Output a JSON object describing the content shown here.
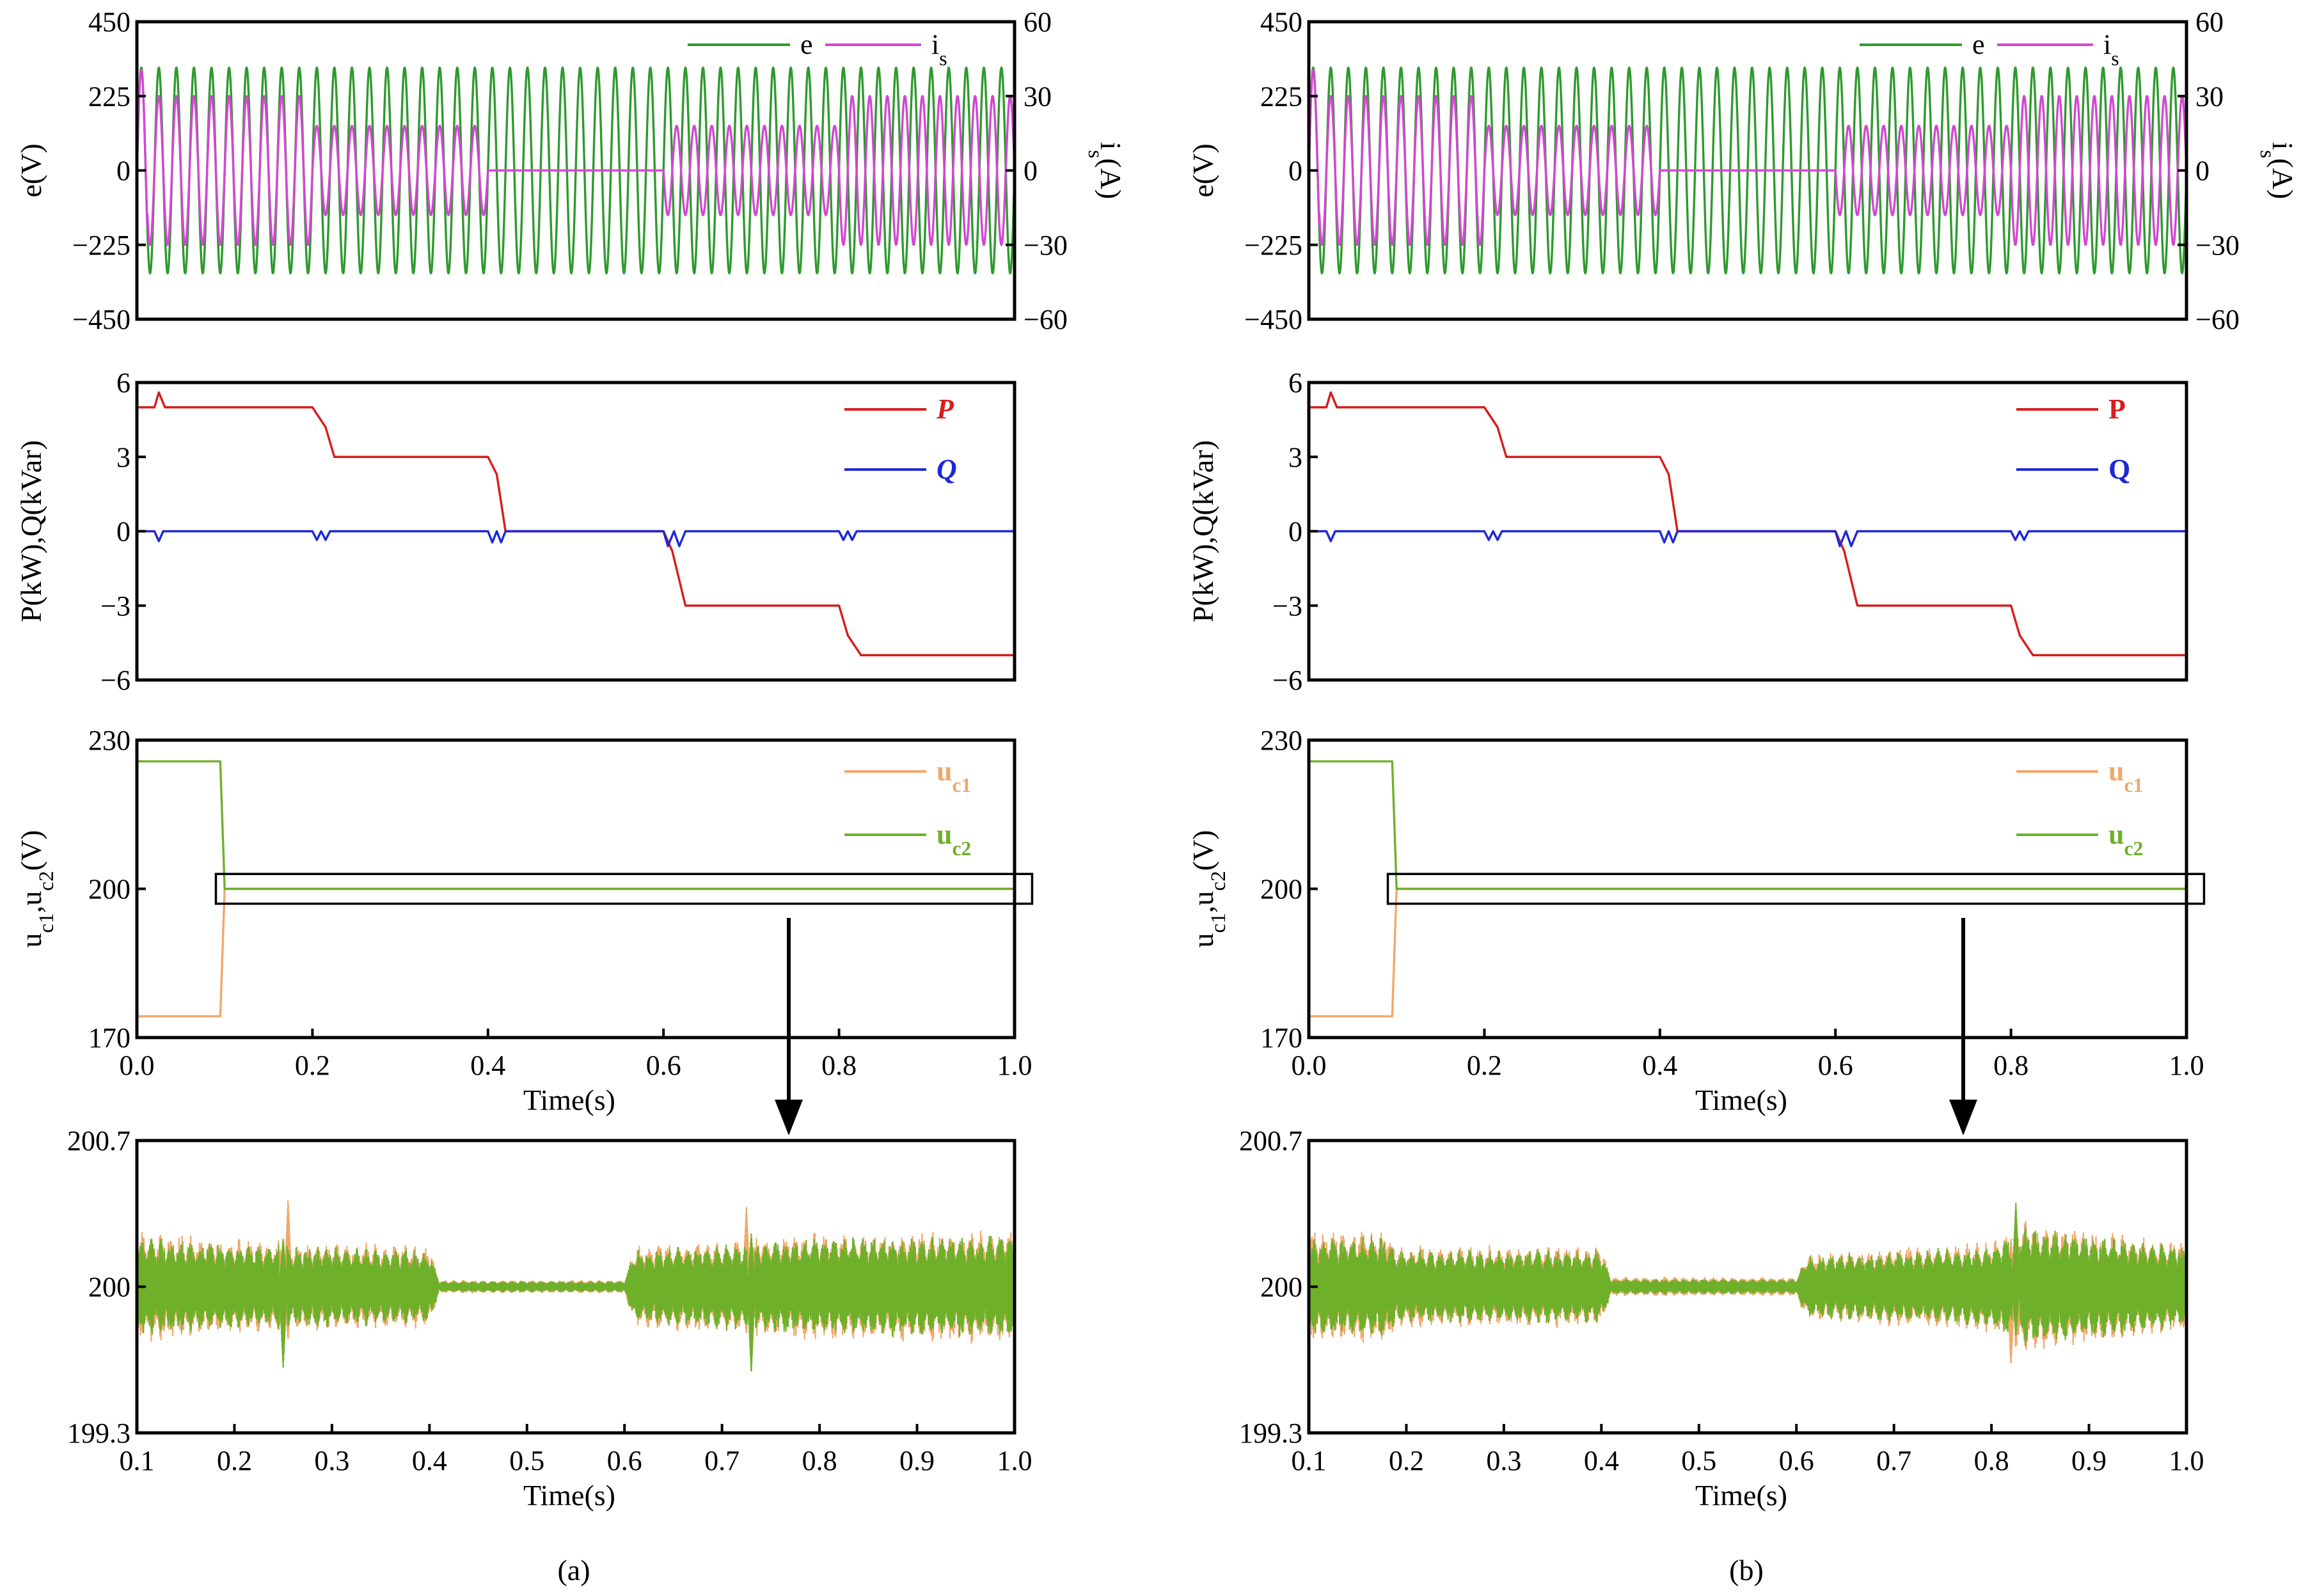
{
  "figure_labels": {
    "a": "(a)",
    "b": "(b)"
  },
  "colors": {
    "e": "#2e9a2e",
    "is": "#d247d2",
    "P": "#d81c1c",
    "Q": "#1c28d8",
    "uc1": "#f0a86a",
    "uc2": "#6fb02a",
    "axis": "#000000"
  },
  "chart_data": [
    {
      "id": "a1",
      "type": "line",
      "ylabel_left": "e(V)",
      "ylabel_right": "i<sub>s</sub>(A)",
      "ylim_left": [
        -450,
        450
      ],
      "ylim_right": [
        -60,
        60
      ],
      "yticks_left": [
        "450",
        "225",
        "0",
        "−225",
        "−450"
      ],
      "yticks_right": [
        "60",
        "30",
        "0",
        "−30",
        "−60"
      ],
      "xlim": [
        0,
        1
      ],
      "legend": [
        {
          "name": "e"
        },
        {
          "name": "i",
          "sub": "s"
        }
      ],
      "series": [
        {
          "name": "e",
          "kind": "sine",
          "freq": 50,
          "amp": 311
        },
        {
          "name": "is",
          "kind": "sine_steps",
          "freq": 50,
          "amp_scale": 60,
          "phase_shift": 180,
          "segments": [
            [
              0,
              0.2,
              30,
              1
            ],
            [
              0.2,
              0.4,
              18,
              1
            ],
            [
              0.4,
              0.6,
              0,
              1
            ],
            [
              0.6,
              0.8,
              18,
              -1
            ],
            [
              0.8,
              1.0,
              30,
              -1
            ]
          ]
        }
      ]
    },
    {
      "id": "a2",
      "type": "line",
      "ylabel_left": "P(kW),Q(kVar)",
      "ylim_left": [
        -6,
        6
      ],
      "yticks_left": [
        "6",
        "3",
        "0",
        "−3",
        "−6"
      ],
      "xlim": [
        0,
        1
      ],
      "legend": [
        {
          "name": "P",
          "italic": true
        },
        {
          "name": "Q",
          "italic": true
        }
      ],
      "series": [
        {
          "name": "P",
          "points": [
            [
              0,
              5
            ],
            [
              0.02,
              5
            ],
            [
              0.025,
              5.6
            ],
            [
              0.032,
              5
            ],
            [
              0.2,
              5
            ],
            [
              0.215,
              4.2
            ],
            [
              0.225,
              3
            ],
            [
              0.4,
              3
            ],
            [
              0.41,
              2.3
            ],
            [
              0.42,
              0
            ],
            [
              0.6,
              0
            ],
            [
              0.61,
              -0.8
            ],
            [
              0.625,
              -3
            ],
            [
              0.8,
              -3
            ],
            [
              0.81,
              -4.2
            ],
            [
              0.825,
              -5
            ],
            [
              1.0,
              -5
            ]
          ]
        },
        {
          "name": "Q",
          "points": [
            [
              0,
              0
            ],
            [
              0.02,
              0
            ],
            [
              0.025,
              -0.4
            ],
            [
              0.03,
              0
            ],
            [
              0.2,
              0
            ],
            [
              0.205,
              -0.35
            ],
            [
              0.21,
              0
            ],
            [
              0.215,
              -0.35
            ],
            [
              0.22,
              0
            ],
            [
              0.4,
              0
            ],
            [
              0.405,
              -0.45
            ],
            [
              0.41,
              0
            ],
            [
              0.415,
              -0.45
            ],
            [
              0.42,
              0
            ],
            [
              0.6,
              0
            ],
            [
              0.605,
              -0.6
            ],
            [
              0.612,
              0
            ],
            [
              0.618,
              -0.6
            ],
            [
              0.625,
              0
            ],
            [
              0.8,
              0
            ],
            [
              0.805,
              -0.35
            ],
            [
              0.81,
              0
            ],
            [
              0.815,
              -0.35
            ],
            [
              0.82,
              0
            ],
            [
              1.0,
              0
            ]
          ]
        }
      ]
    },
    {
      "id": "a3",
      "type": "line",
      "ylabel_left": "u<sub>c1</sub>,u<sub>c2</sub>(V)",
      "ylim_left": [
        165,
        235
      ],
      "yticks_left": [
        "230",
        "200",
        "170"
      ],
      "xlim": [
        0,
        1
      ],
      "xticks": [
        "0.0",
        "0.2",
        "0.4",
        "0.6",
        "0.8",
        "1.0"
      ],
      "xlabel": "Time(s)",
      "legend": [
        {
          "name": "u",
          "sub": "c1",
          "bold": true,
          "colorkey": "uc1"
        },
        {
          "name": "u",
          "sub": "c2",
          "bold": true,
          "colorkey": "uc2"
        }
      ],
      "series": [
        {
          "name": "uc1",
          "points": [
            [
              0,
              170
            ],
            [
              0.095,
              170
            ],
            [
              0.1,
              200
            ],
            [
              1.0,
              200
            ]
          ]
        },
        {
          "name": "uc2",
          "points": [
            [
              0,
              230
            ],
            [
              0.095,
              230
            ],
            [
              0.1,
              200
            ],
            [
              1.0,
              200
            ]
          ]
        }
      ],
      "zoom_box": {
        "x0": 0.09,
        "x1": 1.02,
        "y0": 196.5,
        "y1": 203.5
      }
    },
    {
      "id": "a4",
      "type": "line",
      "ylim_left": [
        199.3,
        200.7
      ],
      "yticks_left": [
        "200.7",
        "200",
        "199.3"
      ],
      "xlim": [
        0.1,
        1.0
      ],
      "xticks": [
        "0.1",
        "0.2",
        "0.3",
        "0.4",
        "0.5",
        "0.6",
        "0.7",
        "0.8",
        "0.9",
        "1.0"
      ],
      "xlabel": "Time(s)",
      "series": [
        {
          "name": "uc1",
          "kind": "ripple",
          "seed": 11,
          "envelope": [
            [
              0.1,
              0.27
            ],
            [
              0.2,
              0.23
            ],
            [
              0.4,
              0.2
            ],
            [
              0.41,
              0.03
            ],
            [
              0.6,
              0.03
            ],
            [
              0.61,
              0.2
            ],
            [
              0.8,
              0.26
            ],
            [
              1.0,
              0.28
            ]
          ],
          "spikes": [
            [
              0.255,
              0.42
            ],
            [
              0.725,
              0.38
            ]
          ]
        },
        {
          "name": "uc2",
          "kind": "ripple",
          "seed": 23,
          "envelope": [
            [
              0.1,
              0.24
            ],
            [
              0.2,
              0.21
            ],
            [
              0.4,
              0.18
            ],
            [
              0.41,
              0.025
            ],
            [
              0.6,
              0.025
            ],
            [
              0.61,
              0.18
            ],
            [
              0.8,
              0.24
            ],
            [
              1.0,
              0.25
            ]
          ],
          "spikes": [
            [
              0.25,
              -0.39
            ],
            [
              0.73,
              -0.42
            ]
          ]
        }
      ]
    },
    {
      "id": "b1",
      "type": "line",
      "ylabel_left": "e(V)",
      "ylabel_right": "i<sub>s</sub>(A)",
      "ylim_left": [
        -450,
        450
      ],
      "ylim_right": [
        -60,
        60
      ],
      "yticks_left": [
        "450",
        "225",
        "0",
        "−225",
        "−450"
      ],
      "yticks_right": [
        "60",
        "30",
        "0",
        "−30",
        "−60"
      ],
      "xlim": [
        0,
        1
      ],
      "legend": [
        {
          "name": "e"
        },
        {
          "name": "i",
          "sub": "s"
        }
      ],
      "series": [
        {
          "name": "e",
          "kind": "sine",
          "freq": 50,
          "amp": 311
        },
        {
          "name": "is",
          "kind": "sine_steps",
          "freq": 50,
          "amp_scale": 60,
          "phase_shift": 180,
          "segments": [
            [
              0,
              0.2,
              30,
              1
            ],
            [
              0.2,
              0.4,
              18,
              1
            ],
            [
              0.4,
              0.6,
              0,
              1
            ],
            [
              0.6,
              0.8,
              18,
              -1
            ],
            [
              0.8,
              1.0,
              30,
              -1
            ]
          ]
        }
      ]
    },
    {
      "id": "b2",
      "type": "line",
      "ylabel_left": "P(kW),Q(kVar)",
      "ylim_left": [
        -6,
        6
      ],
      "yticks_left": [
        "6",
        "3",
        "0",
        "−3",
        "−6"
      ],
      "xlim": [
        0,
        1
      ],
      "legend": [
        {
          "name": "P",
          "bold": true
        },
        {
          "name": "Q",
          "bold": true
        }
      ],
      "series": [
        {
          "name": "P",
          "points": [
            [
              0,
              5
            ],
            [
              0.02,
              5
            ],
            [
              0.025,
              5.6
            ],
            [
              0.032,
              5
            ],
            [
              0.2,
              5
            ],
            [
              0.215,
              4.2
            ],
            [
              0.225,
              3
            ],
            [
              0.4,
              3
            ],
            [
              0.41,
              2.3
            ],
            [
              0.42,
              0
            ],
            [
              0.6,
              0
            ],
            [
              0.61,
              -0.8
            ],
            [
              0.625,
              -3
            ],
            [
              0.8,
              -3
            ],
            [
              0.81,
              -4.2
            ],
            [
              0.825,
              -5
            ],
            [
              1.0,
              -5
            ]
          ]
        },
        {
          "name": "Q",
          "points": [
            [
              0,
              0
            ],
            [
              0.02,
              0
            ],
            [
              0.025,
              -0.4
            ],
            [
              0.03,
              0
            ],
            [
              0.2,
              0
            ],
            [
              0.205,
              -0.35
            ],
            [
              0.21,
              0
            ],
            [
              0.215,
              -0.35
            ],
            [
              0.22,
              0
            ],
            [
              0.4,
              0
            ],
            [
              0.405,
              -0.45
            ],
            [
              0.41,
              0
            ],
            [
              0.415,
              -0.45
            ],
            [
              0.42,
              0
            ],
            [
              0.6,
              0
            ],
            [
              0.605,
              -0.6
            ],
            [
              0.612,
              0
            ],
            [
              0.618,
              -0.6
            ],
            [
              0.625,
              0
            ],
            [
              0.8,
              0
            ],
            [
              0.805,
              -0.35
            ],
            [
              0.81,
              0
            ],
            [
              0.815,
              -0.35
            ],
            [
              0.82,
              0
            ],
            [
              1.0,
              0
            ]
          ]
        }
      ]
    },
    {
      "id": "b3",
      "type": "line",
      "ylabel_left": "u<sub>c1</sub>,u<sub>c2</sub>(V)",
      "ylim_left": [
        165,
        235
      ],
      "yticks_left": [
        "230",
        "200",
        "170"
      ],
      "xlim": [
        0,
        1
      ],
      "xticks": [
        "0.0",
        "0.2",
        "0.4",
        "0.6",
        "0.8",
        "1.0"
      ],
      "xlabel": "Time(s)",
      "legend": [
        {
          "name": "u",
          "sub": "c1",
          "bold": true,
          "colorkey": "uc1"
        },
        {
          "name": "u",
          "sub": "c2",
          "bold": true,
          "colorkey": "uc2"
        }
      ],
      "series": [
        {
          "name": "uc1",
          "points": [
            [
              0,
              170
            ],
            [
              0.095,
              170
            ],
            [
              0.1,
              200
            ],
            [
              1.0,
              200
            ]
          ]
        },
        {
          "name": "uc2",
          "points": [
            [
              0,
              230
            ],
            [
              0.095,
              230
            ],
            [
              0.1,
              200
            ],
            [
              1.0,
              200
            ]
          ]
        }
      ],
      "zoom_box": {
        "x0": 0.09,
        "x1": 1.02,
        "y0": 196.5,
        "y1": 203.5
      }
    },
    {
      "id": "b4",
      "type": "line",
      "ylim_left": [
        199.3,
        200.7
      ],
      "yticks_left": [
        "200.7",
        "200",
        "199.3"
      ],
      "xlim": [
        0.1,
        1.0
      ],
      "xticks": [
        "0.1",
        "0.2",
        "0.3",
        "0.4",
        "0.5",
        "0.6",
        "0.7",
        "0.8",
        "0.9",
        "1.0"
      ],
      "xlabel": "Time(s)",
      "series": [
        {
          "name": "uc1",
          "kind": "ripple",
          "seed": 37,
          "envelope": [
            [
              0.1,
              0.27
            ],
            [
              0.18,
              0.28
            ],
            [
              0.19,
              0.2
            ],
            [
              0.4,
              0.2
            ],
            [
              0.41,
              0.045
            ],
            [
              0.6,
              0.045
            ],
            [
              0.61,
              0.16
            ],
            [
              0.8,
              0.22
            ],
            [
              0.83,
              0.32
            ],
            [
              1.0,
              0.22
            ]
          ],
          "spikes": [
            [
              0.82,
              -0.38
            ]
          ]
        },
        {
          "name": "uc2",
          "kind": "ripple",
          "seed": 41,
          "envelope": [
            [
              0.1,
              0.24
            ],
            [
              0.18,
              0.25
            ],
            [
              0.19,
              0.18
            ],
            [
              0.4,
              0.18
            ],
            [
              0.41,
              0.035
            ],
            [
              0.6,
              0.035
            ],
            [
              0.61,
              0.15
            ],
            [
              0.8,
              0.2
            ],
            [
              0.83,
              0.3
            ],
            [
              1.0,
              0.2
            ]
          ],
          "spikes": [
            [
              0.825,
              0.4
            ]
          ]
        }
      ]
    }
  ]
}
